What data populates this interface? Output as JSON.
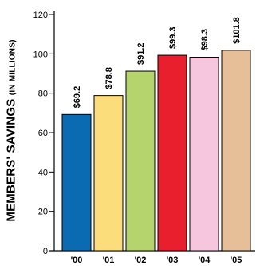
{
  "chart_data": {
    "type": "bar",
    "categories": [
      "'00",
      "'01",
      "'02",
      "'03",
      "'04",
      "'05"
    ],
    "values": [
      69.2,
      78.8,
      91.2,
      99.3,
      98.3,
      101.8
    ],
    "data_labels": [
      "$69.2",
      "$78.8",
      "$91.2",
      "$99.3",
      "$98.3",
      "$101.8"
    ],
    "colors": [
      "#0a6bb3",
      "#fcdd7c",
      "#b6d46e",
      "#ea1f2e",
      "#f6c6df",
      "#e6bf98"
    ],
    "ylabel": "MEMBERS' SAVINGS",
    "ylabel_unit": "(IN MILLIONS)",
    "yticks": [
      0,
      20,
      40,
      60,
      80,
      100,
      120
    ],
    "ytick_labels": [
      "0",
      "20",
      "40",
      "60",
      "80",
      "100",
      "120"
    ],
    "ylim": [
      0,
      120
    ],
    "grid": false,
    "legend": "none"
  }
}
